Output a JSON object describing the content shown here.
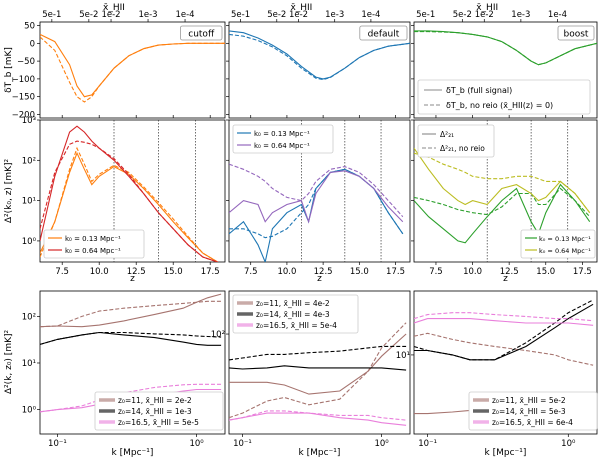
{
  "colors": {
    "cutoff": "#ff7f0e",
    "default": "#1f77b4",
    "boost": "#2ca02c",
    "purple": "#9467bd",
    "olive": "#bcbd22",
    "k_z11": "#a6746f",
    "k_z14": "#000000",
    "k_z165": "#e97fdb"
  },
  "labels": {
    "top_axis": "x̄_HII",
    "top_ticks": [
      "5e-1",
      "5e-2",
      "1e-2",
      "1e-3",
      "1e-4"
    ],
    "row1_ylabel": "δT_b [mK]",
    "row2_ylabel": "Δ²(k₀, z) [mK]²",
    "row3_ylabel": "Δ²(k, z₀) [mK]²",
    "z_label": "z",
    "k_label": "k [Mpc⁻¹]",
    "panel_cutoff": "cutoff",
    "panel_default": "default",
    "panel_boost": "boost",
    "legend_full": "δT_b (full signal)",
    "legend_noreio": "δT_b, no reio (x̄_HII(z) = 0)",
    "legend_d21": "Δ²₂₁",
    "legend_d21_noreio": "Δ²₂₁, no reio",
    "k013": "k₀ = 0.13 Mpc⁻¹",
    "k064": "k₀ = 0.64 Mpc⁻¹",
    "z_ticks": [
      "7.5",
      "10.0",
      "12.5",
      "15.0",
      "17.5"
    ],
    "row1_yticks": [
      "50",
      "0",
      "−50",
      "−100",
      "−150",
      "−200"
    ],
    "row2_yticks": [
      "10⁰",
      "10¹",
      "10²",
      "10³"
    ],
    "row3_k_ticks": [
      "10⁻¹",
      "10⁰"
    ],
    "row3_l_yticks": [
      "10⁰",
      "10¹",
      "10²"
    ],
    "row3_m_yticks": [
      "10²"
    ],
    "row3_r_yticks": [
      "10¹"
    ],
    "row3_legends": [
      [
        "z₀=11, x̄_HII = 2e-2",
        "z₀=14, x̄_HII = 1e-3",
        "z₀=16.5, x̄_HII = 5e-5"
      ],
      [
        "z₀=11, x̄_HII = 4e-2",
        "z₀=14, x̄_HII = 4e-3",
        "z₀=16.5, x̄_HII = 5e-4"
      ],
      [
        "z₀=11, x̄_HII = 5e-2",
        "z₀=14, x̄_HII = 5e-3",
        "z₀=16.5, x̄_HII = 6e-4"
      ]
    ]
  },
  "chart_data": [
    {
      "type": "line",
      "panel": "cutoff global signal",
      "xlabel": "z",
      "ylabel": "δT_b [mK]",
      "xlim": [
        6,
        18.5
      ],
      "ylim": [
        -210,
        60
      ],
      "x": [
        6,
        7,
        8,
        8.5,
        9,
        9.5,
        10,
        11,
        12,
        13,
        14,
        15,
        16,
        17,
        18.5
      ],
      "series": [
        {
          "name": "full",
          "style": "solid",
          "values": [
            25,
            5,
            -60,
            -120,
            -150,
            -145,
            -120,
            -70,
            -35,
            -15,
            -5,
            -2,
            0,
            0,
            0
          ]
        },
        {
          "name": "no reio",
          "style": "dashed",
          "values": [
            18,
            -20,
            -110,
            -150,
            -165,
            -150,
            -120,
            -70,
            -35,
            -15,
            -5,
            -2,
            0,
            0,
            0
          ]
        }
      ]
    },
    {
      "type": "line",
      "panel": "default global signal",
      "xlabel": "z",
      "ylabel": "",
      "xlim": [
        6,
        18.5
      ],
      "ylim": [
        -210,
        60
      ],
      "x": [
        6,
        7,
        8,
        9,
        10,
        11,
        12,
        12.5,
        13,
        14,
        15,
        16,
        17,
        18.5
      ],
      "series": [
        {
          "name": "full",
          "style": "solid",
          "values": [
            35,
            30,
            15,
            -5,
            -30,
            -65,
            -95,
            -100,
            -95,
            -70,
            -40,
            -20,
            -8,
            0
          ]
        },
        {
          "name": "no reio",
          "style": "dashed",
          "values": [
            25,
            20,
            8,
            -10,
            -35,
            -70,
            -98,
            -102,
            -96,
            -70,
            -40,
            -20,
            -8,
            0
          ]
        }
      ]
    },
    {
      "type": "line",
      "panel": "boost global signal",
      "xlabel": "z",
      "ylabel": "",
      "xlim": [
        6,
        18.5
      ],
      "ylim": [
        -210,
        60
      ],
      "x": [
        6,
        7,
        8,
        9,
        10,
        11,
        12,
        13,
        14,
        14.5,
        15,
        16,
        17,
        18.5
      ],
      "series": [
        {
          "name": "full",
          "style": "solid",
          "values": [
            35,
            35,
            33,
            30,
            25,
            18,
            5,
            -20,
            -50,
            -60,
            -55,
            -35,
            -15,
            0
          ]
        },
        {
          "name": "no reio",
          "style": "dashed",
          "values": [
            33,
            33,
            32,
            30,
            25,
            18,
            5,
            -20,
            -50,
            -60,
            -55,
            -35,
            -15,
            0
          ]
        }
      ]
    },
    {
      "type": "line",
      "panel": "cutoff power vs z",
      "xlabel": "z",
      "ylabel": "Δ²(k₀, z) [mK]²",
      "ylog": true,
      "xlim": [
        6,
        18.5
      ],
      "ylim": [
        0.3,
        1000
      ],
      "vlines": [
        11,
        14,
        16.5
      ],
      "x": [
        6,
        7,
        8,
        8.5,
        9,
        9.5,
        10,
        11,
        12,
        13,
        14,
        15,
        16,
        17,
        18
      ],
      "series": [
        {
          "name": "k₀ = 0.13 Mpc⁻¹",
          "color": "cutoff",
          "style": "solid",
          "values": [
            0.5,
            3,
            50,
            150,
            60,
            25,
            40,
            70,
            45,
            20,
            8,
            3,
            1.2,
            0.5,
            0.3
          ]
        },
        {
          "name": "k₀ = 0.13 no reio",
          "color": "cutoff",
          "style": "dashed",
          "values": [
            0.4,
            3,
            60,
            200,
            80,
            30,
            45,
            75,
            50,
            22,
            9,
            3.5,
            1.3,
            0.5,
            0.3
          ]
        },
        {
          "name": "k₀ = 0.64 Mpc⁻¹",
          "color": "#d62728",
          "style": "solid",
          "values": [
            1,
            40,
            500,
            700,
            500,
            300,
            200,
            100,
            40,
            15,
            5,
            2,
            0.8,
            0.4,
            0.3
          ]
        },
        {
          "name": "k₀ = 0.64 no reio",
          "color": "#d62728",
          "style": "dashed",
          "values": [
            2,
            50,
            250,
            300,
            280,
            250,
            200,
            110,
            45,
            15,
            5,
            2,
            0.8,
            0.4,
            0.3
          ]
        }
      ]
    },
    {
      "type": "line",
      "panel": "default power vs z",
      "xlabel": "z",
      "ylabel": "",
      "ylog": true,
      "xlim": [
        6,
        18.5
      ],
      "ylim": [
        0.3,
        1000
      ],
      "vlines": [
        11,
        14,
        16.5
      ],
      "x": [
        6,
        7,
        8,
        8.5,
        9,
        10,
        11,
        11.5,
        12,
        13,
        14,
        15,
        16,
        17,
        18
      ],
      "series": [
        {
          "name": "k₀ = 0.13 Mpc⁻¹",
          "color": "default",
          "style": "solid",
          "values": [
            1.5,
            3,
            0.8,
            0.3,
            2,
            5,
            8,
            3,
            20,
            50,
            60,
            40,
            20,
            5,
            1.5
          ]
        },
        {
          "name": "k₀ = 0.13 no reio",
          "color": "default",
          "style": "dashed",
          "values": [
            2,
            2,
            1.5,
            1.2,
            1.3,
            2,
            5,
            8,
            20,
            50,
            60,
            40,
            20,
            5,
            1.5
          ]
        },
        {
          "name": "k₀ = 0.64 Mpc⁻¹",
          "color": "purple",
          "style": "solid",
          "values": [
            5,
            10,
            8,
            3,
            5,
            8,
            10,
            3,
            15,
            50,
            55,
            40,
            20,
            7,
            3
          ]
        },
        {
          "name": "k₀ = 0.64 no reio",
          "color": "purple",
          "style": "dashed",
          "values": [
            80,
            60,
            40,
            30,
            20,
            12,
            10,
            15,
            30,
            60,
            70,
            50,
            25,
            10,
            4
          ]
        }
      ]
    },
    {
      "type": "line",
      "panel": "boost power vs z",
      "xlabel": "z",
      "ylabel": "",
      "ylog": true,
      "xlim": [
        6,
        18.5
      ],
      "ylim": [
        0.3,
        1000
      ],
      "vlines": [
        11,
        14,
        16.5
      ],
      "x": [
        6,
        7,
        8,
        9,
        9.5,
        10,
        11,
        12,
        13,
        14,
        14.5,
        15,
        16,
        17,
        18
      ],
      "series": [
        {
          "name": "k₀ = 0.13 Mpc⁻¹",
          "color": "boost",
          "style": "solid",
          "values": [
            10,
            4,
            2,
            1,
            0.9,
            1.5,
            4,
            10,
            20,
            3,
            1.5,
            5,
            25,
            10,
            3
          ]
        },
        {
          "name": "k₀ = 0.13 no reio",
          "color": "boost",
          "style": "dashed",
          "values": [
            12,
            10,
            8,
            6,
            5.5,
            5,
            4.5,
            7,
            15,
            15,
            8,
            8,
            20,
            10,
            4
          ]
        },
        {
          "name": "k₀ = 0.64 Mpc⁻¹",
          "color": "olive",
          "style": "solid",
          "values": [
            200,
            60,
            20,
            10,
            8,
            10,
            8,
            20,
            25,
            15,
            10,
            12,
            30,
            15,
            5
          ]
        },
        {
          "name": "k₀ = 0.64 no reio",
          "color": "olive",
          "style": "dashed",
          "values": [
            150,
            120,
            80,
            60,
            50,
            40,
            35,
            35,
            40,
            40,
            35,
            30,
            30,
            15,
            5
          ]
        }
      ]
    },
    {
      "type": "line",
      "panel": "cutoff power vs k",
      "xlabel": "k [Mpc⁻¹]",
      "ylabel": "Δ²(k, z₀) [mK]²",
      "xlog": true,
      "ylog": true,
      "xlim": [
        0.075,
        1.6
      ],
      "ylim": [
        0.3,
        350
      ],
      "x": [
        0.075,
        0.1,
        0.15,
        0.2,
        0.3,
        0.5,
        0.8,
        1.0,
        1.2,
        1.5
      ],
      "series": [
        {
          "name": "z₀=11",
          "color": "k_z11",
          "style": "solid",
          "values": [
            60,
            62,
            60,
            65,
            80,
            110,
            150,
            200,
            250,
            300
          ]
        },
        {
          "name": "z₀=11 no reio",
          "color": "k_z11",
          "style": "dashed",
          "values": [
            60,
            62,
            100,
            130,
            150,
            170,
            190,
            200,
            210,
            210
          ]
        },
        {
          "name": "z₀=14",
          "color": "k_z14",
          "style": "solid",
          "values": [
            25,
            32,
            40,
            45,
            40,
            35,
            28,
            25,
            24,
            24
          ]
        },
        {
          "name": "z₀=14 no reio",
          "color": "k_z14",
          "style": "dashed",
          "values": [
            25,
            32,
            40,
            45,
            45,
            42,
            40,
            38,
            37,
            36
          ]
        },
        {
          "name": "z₀=16.5",
          "color": "k_z165",
          "style": "solid",
          "values": [
            0.9,
            1.0,
            1.1,
            1.3,
            1.6,
            2.0,
            2.5,
            2.7,
            2.7,
            2.7
          ]
        },
        {
          "name": "z₀=16.5 no reio",
          "color": "k_z165",
          "style": "dashed",
          "values": [
            0.9,
            1.0,
            1.2,
            1.6,
            2.3,
            3.0,
            3.4,
            3.5,
            3.5,
            3.5
          ]
        }
      ]
    },
    {
      "type": "line",
      "panel": "default power vs k",
      "xlabel": "k [Mpc⁻¹]",
      "ylabel": "",
      "xlog": true,
      "ylog": true,
      "xlim": [
        0.08,
        1.6
      ],
      "ylim": [
        20,
        200
      ],
      "x": [
        0.08,
        0.1,
        0.15,
        0.2,
        0.3,
        0.5,
        0.8,
        1.0,
        1.5
      ],
      "series": [
        {
          "name": "z₀=11",
          "color": "k_z11",
          "style": "solid",
          "values": [
            46,
            46,
            46,
            44,
            38,
            40,
            55,
            70,
            100
          ]
        },
        {
          "name": "z₀=11 no reio",
          "color": "k_z11",
          "style": "dashed",
          "values": [
            26,
            28,
            34,
            36,
            32,
            35,
            55,
            80,
            120
          ]
        },
        {
          "name": "z₀=14",
          "color": "k_z14",
          "style": "solid",
          "values": [
            58,
            57,
            58,
            60,
            58,
            58,
            58,
            58,
            56
          ]
        },
        {
          "name": "z₀=14 no reio",
          "color": "k_z14",
          "style": "dashed",
          "values": [
            66,
            68,
            72,
            72,
            74,
            76,
            80,
            82,
            82
          ]
        },
        {
          "name": "z₀=16.5",
          "color": "k_z165",
          "style": "solid",
          "values": [
            25,
            26,
            28,
            28,
            28,
            26,
            25,
            24,
            23
          ]
        },
        {
          "name": "z₀=16.5 no reio",
          "color": "k_z165",
          "style": "dashed",
          "values": [
            25,
            26,
            29,
            29,
            28,
            27,
            27,
            26,
            25
          ]
        }
      ]
    },
    {
      "type": "line",
      "panel": "boost power vs k",
      "xlabel": "k [Mpc⁻¹]",
      "ylabel": "",
      "xlog": true,
      "ylog": true,
      "xlim": [
        0.08,
        1.6
      ],
      "ylim": [
        1.8,
        40
      ],
      "x": [
        0.08,
        0.1,
        0.15,
        0.2,
        0.3,
        0.5,
        0.8,
        1.0,
        1.5
      ],
      "series": [
        {
          "name": "z₀=11",
          "color": "k_z11",
          "style": "solid",
          "values": [
            2.8,
            2.8,
            2.9,
            3.0,
            3.0,
            3.0,
            3.0,
            3.0,
            3.0
          ]
        },
        {
          "name": "z₀=11 no reio",
          "color": "k_z11",
          "style": "dashed",
          "values": [
            15,
            16,
            14,
            13,
            12,
            11,
            10,
            9,
            8
          ]
        },
        {
          "name": "z₀=14",
          "color": "k_z14",
          "style": "solid",
          "values": [
            11,
            11,
            10,
            9,
            9,
            12,
            18,
            22,
            30
          ]
        },
        {
          "name": "z₀=14 no reio",
          "color": "k_z14",
          "style": "dashed",
          "values": [
            12,
            11,
            10,
            9,
            9,
            13,
            20,
            25,
            33
          ]
        },
        {
          "name": "z₀=16.5",
          "color": "k_z165",
          "style": "solid",
          "values": [
            20,
            22,
            22,
            22,
            21,
            20,
            20,
            20,
            19
          ]
        },
        {
          "name": "z₀=16.5 no reio",
          "color": "k_z165",
          "style": "dashed",
          "values": [
            22,
            24,
            25,
            25,
            24,
            23,
            22,
            22,
            21
          ]
        }
      ]
    }
  ]
}
